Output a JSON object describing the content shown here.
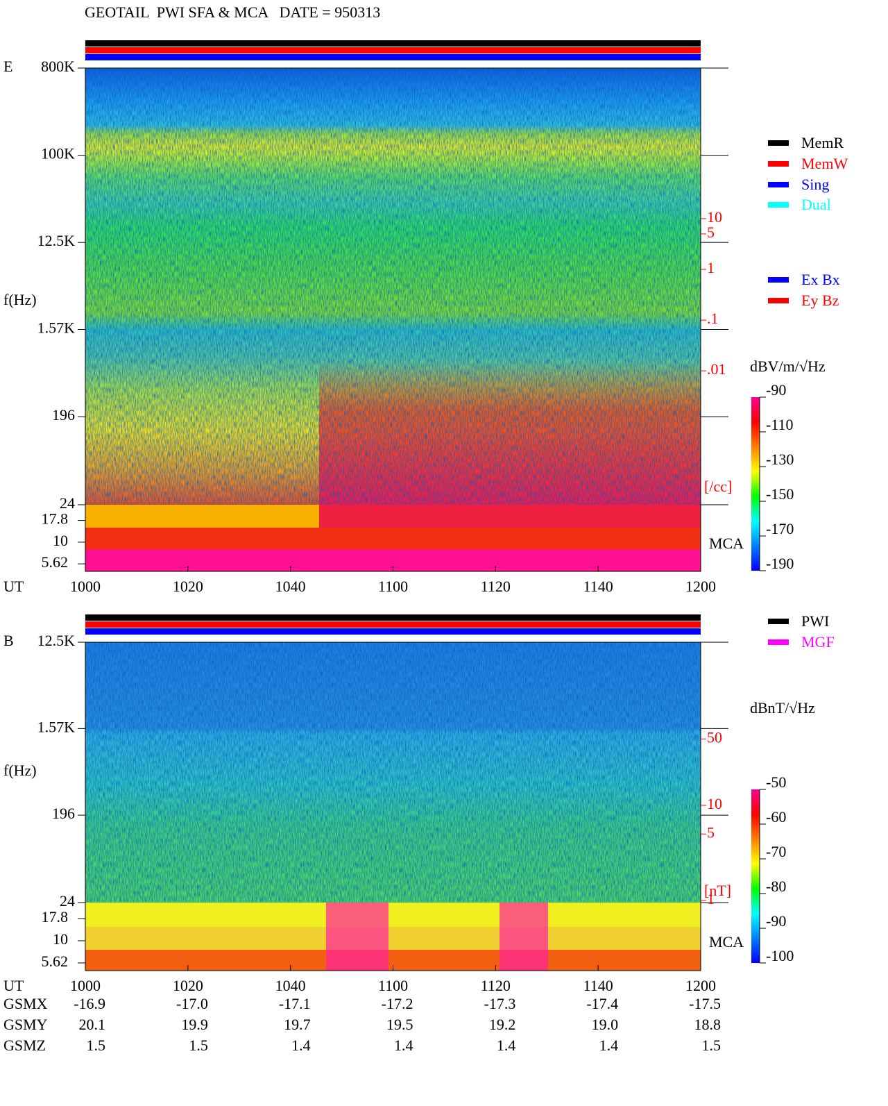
{
  "title": "GEOTAIL  PWI SFA & MCA   DATE = 950313",
  "chart_data": [
    {
      "type": "spectrogram",
      "panel_label": "E",
      "y_label": "f(Hz)",
      "x_label": "UT",
      "yscale": "log",
      "ylim": [
        24,
        800000
      ],
      "yticks": [
        {
          "value": 800000,
          "label": "800K"
        },
        {
          "value": 100000,
          "label": "100K"
        },
        {
          "value": 12500,
          "label": "12.5K"
        },
        {
          "value": 1570,
          "label": "1.57K"
        },
        196,
        24
      ],
      "mca_label": "MCA",
      "mca_ylim": [
        4.6,
        27
      ],
      "mca_yticks": [
        17.8,
        10,
        5.62
      ],
      "y2_label": "[/cc]",
      "y2scale": "log",
      "y2lim": [
        2.3e-05,
        9300
      ],
      "y2ticks": [
        10,
        5,
        1,
        {
          "value": 0.1,
          "label": ".1"
        },
        {
          "value": 0.01,
          "label": ".01"
        }
      ],
      "y2_color": "#ff0000",
      "xlim": [
        600,
        720
      ],
      "xticks": [
        {
          "value": 600,
          "label": "1000"
        },
        {
          "value": 620,
          "label": "1020"
        },
        {
          "value": 640,
          "label": "1040"
        },
        {
          "value": 660,
          "label": "1100"
        },
        {
          "value": 680,
          "label": "1120"
        },
        {
          "value": 700,
          "label": "1140"
        },
        {
          "value": 720,
          "label": "1200"
        }
      ],
      "colorbar": {
        "label": "dBV/m/√Hz",
        "lim": [
          -190,
          -90
        ],
        "ticks": [
          -90,
          -110,
          -130,
          -150,
          -170,
          -190
        ],
        "colors": [
          "#ff0090",
          "#ff0000",
          "#ff8000",
          "#ffff00",
          "#00ff00",
          "#00ffff",
          "#0080ff",
          "#0000ff"
        ]
      },
      "legend": [
        {
          "name": "MemR",
          "color": "#000000"
        },
        {
          "name": "MemW",
          "color": "#ff0000"
        },
        {
          "name": "Sing",
          "color": "#0000ff"
        },
        {
          "name": "Dual",
          "color": "#00ffff"
        },
        {
          "name": "Ex Bx",
          "color": "#0000ff"
        },
        {
          "name": "Ey Bz",
          "color": "#ff0000"
        }
      ],
      "status_colors": [
        "#000000",
        "#ff0000",
        "#0000ff"
      ]
    },
    {
      "type": "spectrogram",
      "panel_label": "B",
      "y_label": "f(Hz)",
      "x_label": "UT",
      "yscale": "log",
      "ylim": [
        24,
        12500
      ],
      "yticks": [
        {
          "value": 12500,
          "label": "12.5K"
        },
        {
          "value": 1570,
          "label": "1.57K"
        },
        196,
        24
      ],
      "mca_label": "MCA",
      "mca_ylim": [
        4.6,
        27
      ],
      "mca_yticks": [
        17.8,
        10,
        5.62
      ],
      "y2_label": "[nT]",
      "y2scale": "log",
      "y2lim": [
        0.95,
        520
      ],
      "y2ticks": [
        50,
        10,
        5,
        1
      ],
      "y2_color": "#ff0000",
      "xlim": [
        600,
        720
      ],
      "xticks": [
        {
          "value": 600,
          "label": "1000"
        },
        {
          "value": 620,
          "label": "1020"
        },
        {
          "value": 640,
          "label": "1040"
        },
        {
          "value": 660,
          "label": "1100"
        },
        {
          "value": 680,
          "label": "1120"
        },
        {
          "value": 700,
          "label": "1140"
        },
        {
          "value": 720,
          "label": "1200"
        }
      ],
      "colorbar": {
        "label": "dBnT/√Hz",
        "lim": [
          -100,
          -50
        ],
        "ticks": [
          -50,
          -60,
          -70,
          -80,
          -90,
          -100
        ],
        "colors": [
          "#ff0090",
          "#ff0000",
          "#ff8000",
          "#ffff00",
          "#00ff00",
          "#00ffff",
          "#0080ff",
          "#0000ff"
        ]
      },
      "legend": [
        {
          "name": "PWI",
          "color": "#000000"
        },
        {
          "name": "MGF",
          "color": "#ff00ff"
        }
      ],
      "status_colors": [
        "#000000",
        "#ff0000",
        "#0000ff"
      ]
    }
  ],
  "orbit": {
    "rows": [
      {
        "name": "GSMX",
        "values": [
          "-16.9",
          "-17.0",
          "-17.1",
          "-17.2",
          "-17.3",
          "-17.4",
          "-17.5"
        ]
      },
      {
        "name": "GSMY",
        "values": [
          "20.1",
          "19.9",
          "19.7",
          "19.5",
          "19.2",
          "19.0",
          "18.8"
        ]
      },
      {
        "name": "GSMZ",
        "values": [
          "1.5",
          "1.5",
          "1.4",
          "1.4",
          "1.4",
          "1.4",
          "1.5"
        ]
      }
    ]
  }
}
